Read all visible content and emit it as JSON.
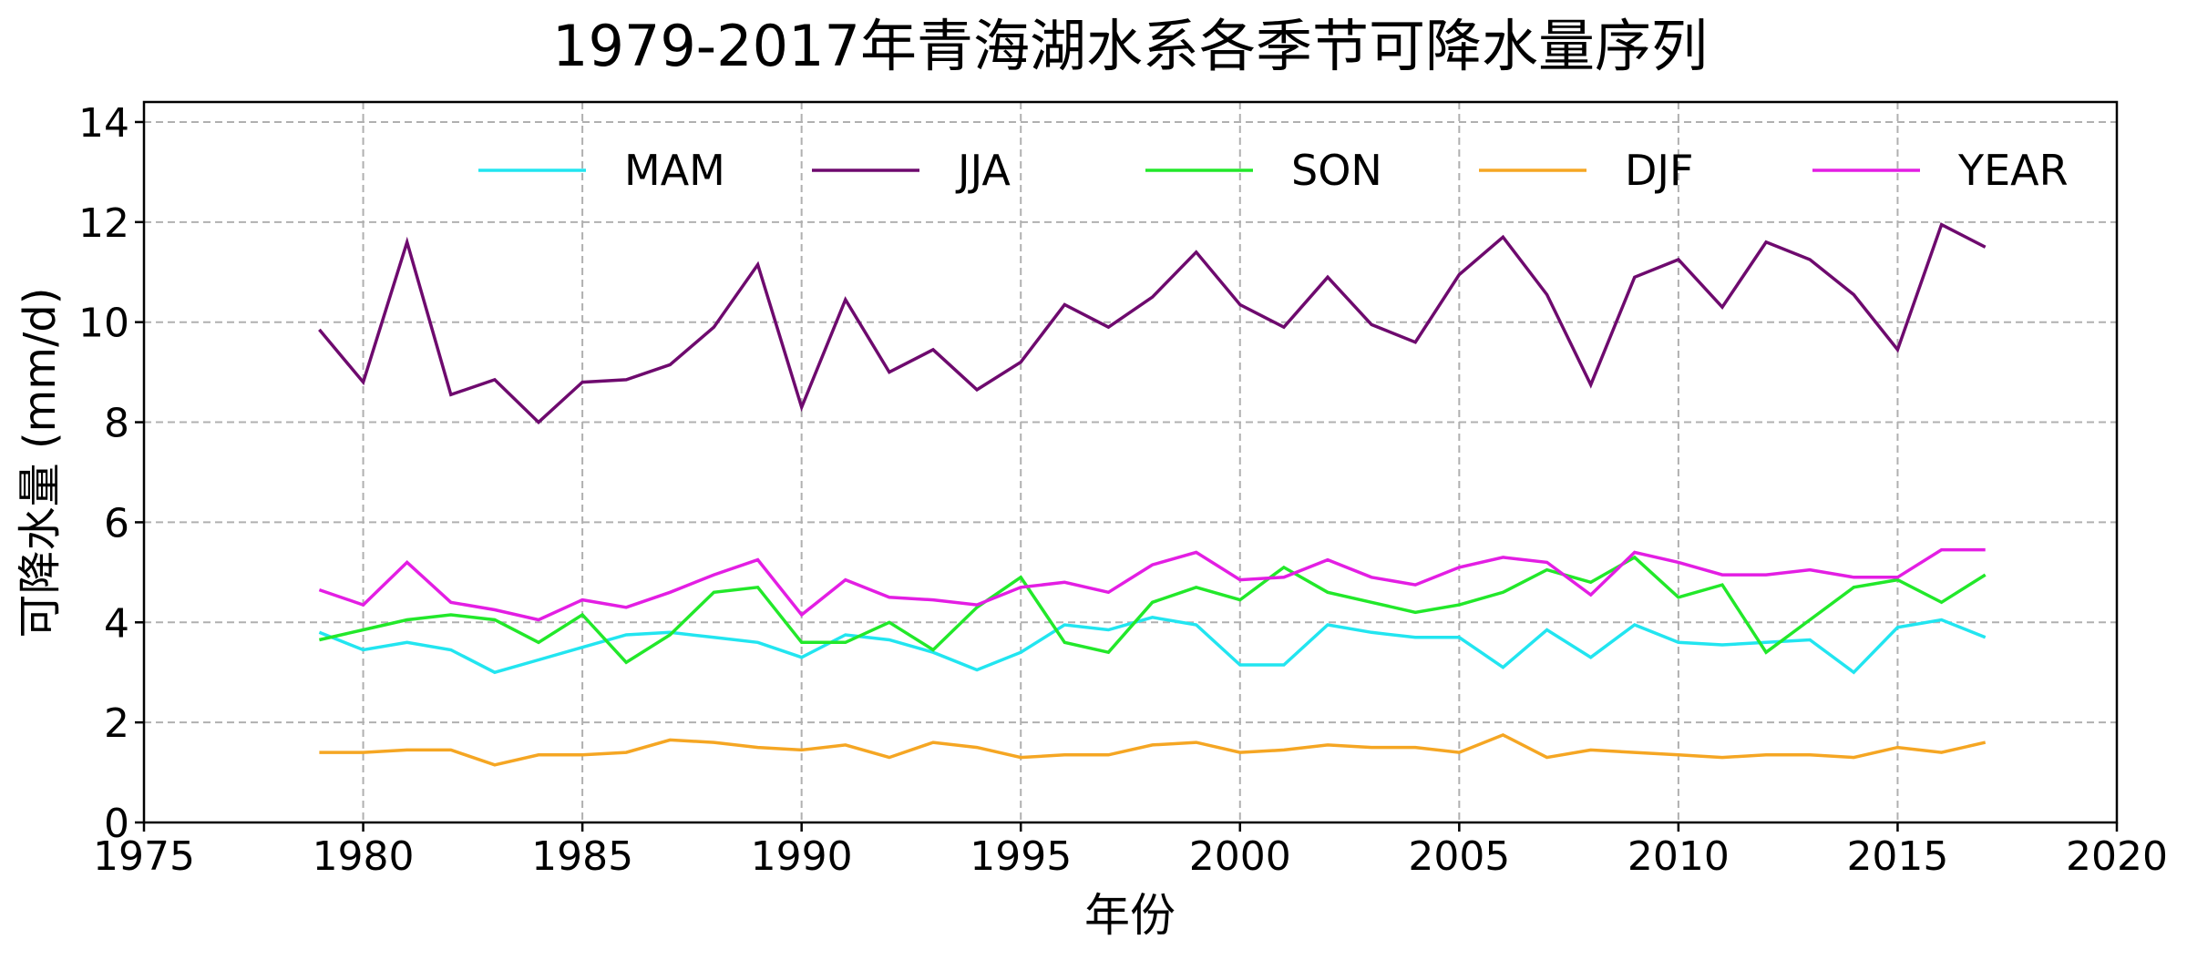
{
  "chart_data": {
    "type": "line",
    "title": "1979-2017年青海湖水系各季节可降水量序列",
    "xlabel": "年份",
    "ylabel": "可降水量 (mm/d)",
    "xlim": [
      1975,
      2020
    ],
    "ylim": [
      0,
      14.4
    ],
    "xticks": [
      1975,
      1980,
      1985,
      1990,
      1995,
      2000,
      2005,
      2010,
      2015,
      2020
    ],
    "yticks": [
      0,
      2,
      4,
      6,
      8,
      10,
      12,
      14
    ],
    "grid": true,
    "legend_position": "top",
    "x": [
      1979,
      1980,
      1981,
      1982,
      1983,
      1984,
      1985,
      1986,
      1987,
      1988,
      1989,
      1990,
      1991,
      1992,
      1993,
      1994,
      1995,
      1996,
      1997,
      1998,
      1999,
      2000,
      2001,
      2002,
      2003,
      2004,
      2005,
      2006,
      2007,
      2008,
      2009,
      2010,
      2011,
      2012,
      2013,
      2014,
      2015,
      2016,
      2017
    ],
    "series": [
      {
        "name": "MAM",
        "color": "#22e5f0",
        "values": [
          3.8,
          3.45,
          3.6,
          3.45,
          3.0,
          3.25,
          3.5,
          3.75,
          3.8,
          3.7,
          3.6,
          3.3,
          3.75,
          3.65,
          3.4,
          3.05,
          3.4,
          3.95,
          3.85,
          4.1,
          3.95,
          3.15,
          3.15,
          3.95,
          3.8,
          3.7,
          3.7,
          3.1,
          3.85,
          3.3,
          3.95,
          3.6,
          3.55,
          3.6,
          3.65,
          3.0,
          3.9,
          4.05,
          3.7
        ]
      },
      {
        "name": "JJA",
        "color": "#6e0a6e",
        "values": [
          9.85,
          8.8,
          11.6,
          8.55,
          8.85,
          8.0,
          8.8,
          8.85,
          9.15,
          9.9,
          11.15,
          8.3,
          10.45,
          9.0,
          9.45,
          8.65,
          9.2,
          10.35,
          9.9,
          10.5,
          11.4,
          10.35,
          9.9,
          10.9,
          9.95,
          9.6,
          10.95,
          11.7,
          10.55,
          8.75,
          10.9,
          11.25,
          10.3,
          11.6,
          11.25,
          10.55,
          9.45,
          11.95,
          11.5
        ]
      },
      {
        "name": "SON",
        "color": "#22e82a",
        "values": [
          3.65,
          3.85,
          4.05,
          4.15,
          4.05,
          3.6,
          4.15,
          3.2,
          3.75,
          4.6,
          4.7,
          3.6,
          3.6,
          4.0,
          3.45,
          4.3,
          4.9,
          3.6,
          3.4,
          4.4,
          4.7,
          4.45,
          5.1,
          4.6,
          4.4,
          4.2,
          4.35,
          4.6,
          5.05,
          4.8,
          5.3,
          4.5,
          4.75,
          3.4,
          4.05,
          4.7,
          4.85,
          4.4,
          4.95
        ]
      },
      {
        "name": "DJF",
        "color": "#f5a623",
        "values": [
          1.4,
          1.4,
          1.45,
          1.45,
          1.15,
          1.35,
          1.35,
          1.4,
          1.65,
          1.6,
          1.5,
          1.45,
          1.55,
          1.3,
          1.6,
          1.5,
          1.3,
          1.35,
          1.35,
          1.55,
          1.6,
          1.4,
          1.45,
          1.55,
          1.5,
          1.5,
          1.4,
          1.75,
          1.3,
          1.45,
          1.4,
          1.35,
          1.3,
          1.35,
          1.35,
          1.3,
          1.5,
          1.4,
          1.6
        ]
      },
      {
        "name": "YEAR",
        "color": "#e31ee3",
        "values": [
          4.65,
          4.35,
          5.2,
          4.4,
          4.25,
          4.05,
          4.45,
          4.3,
          4.6,
          4.95,
          5.25,
          4.15,
          4.85,
          4.5,
          4.45,
          4.35,
          4.7,
          4.8,
          4.6,
          5.15,
          5.4,
          4.85,
          4.9,
          5.25,
          4.9,
          4.75,
          5.1,
          5.3,
          5.2,
          4.55,
          5.4,
          5.2,
          4.95,
          4.95,
          5.05,
          4.9,
          4.9,
          5.45,
          5.45
        ]
      }
    ]
  }
}
